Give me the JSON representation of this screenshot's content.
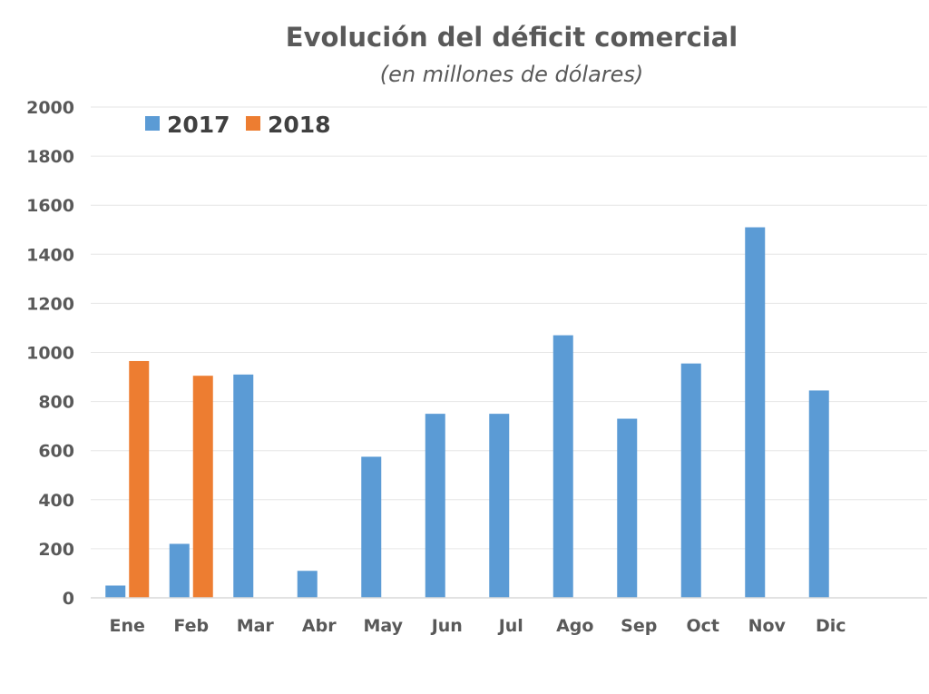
{
  "chart_data": {
    "type": "bar",
    "title": "Evolución del déficit comercial",
    "subtitle": "(en millones de dólares)",
    "xlabel": "",
    "ylabel": "",
    "categories": [
      "Ene",
      "Feb",
      "Mar",
      "Abr",
      "May",
      "Jun",
      "Jul",
      "Ago",
      "Sep",
      "Oct",
      "Nov",
      "Dic"
    ],
    "series": [
      {
        "name": "2017",
        "color": "#5b9bd5",
        "values": [
          50,
          220,
          910,
          110,
          575,
          750,
          750,
          1070,
          730,
          955,
          1510,
          845
        ]
      },
      {
        "name": "2018",
        "color": "#ed7d31",
        "values": [
          965,
          905,
          null,
          null,
          null,
          null,
          null,
          null,
          null,
          null,
          null,
          null
        ]
      }
    ],
    "ylim": [
      0,
      2000
    ],
    "yticks": [
      0,
      200,
      400,
      600,
      800,
      1000,
      1200,
      1400,
      1600,
      1800,
      2000
    ],
    "grid": true,
    "legend_position": "top-left"
  }
}
